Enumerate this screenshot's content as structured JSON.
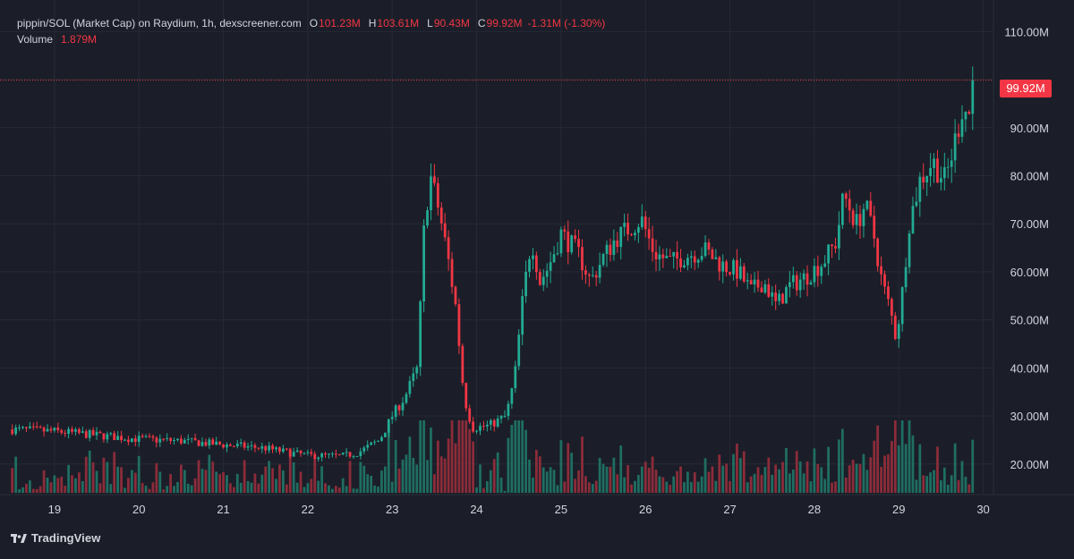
{
  "header": {
    "title": "pippin/SOL (Market Cap) on Raydium, 1h, dexscreener.com",
    "open_label": "O",
    "open_value": "101.23M",
    "high_label": "H",
    "high_value": "103.61M",
    "low_label": "L",
    "low_value": "90.43M",
    "close_label": "C",
    "close_value": "99.92M",
    "change": "-1.31M (-1.30%)",
    "volume_label": "Volume",
    "volume_value": "1.879M"
  },
  "last_price_label": "99.92M",
  "brand": "TradingView",
  "colors": {
    "background": "#1b1e28",
    "grid": "#262a36",
    "up": "#22ab94",
    "down": "#f23645",
    "volume_up": "#1f6e62",
    "volume_down": "#8c2c3a",
    "text": "#d1d4dc"
  },
  "chart_data": {
    "type": "candlestick",
    "x_unit": "day",
    "x_tick_labels": [
      "19",
      "20",
      "21",
      "22",
      "23",
      "24",
      "25",
      "26",
      "27",
      "28",
      "29",
      "30"
    ],
    "x_tick_values": [
      19,
      20,
      21,
      22,
      23,
      24,
      25,
      26,
      27,
      28,
      29,
      30
    ],
    "y_tick_labels": [
      "20.00M",
      "30.00M",
      "40.00M",
      "50.00M",
      "60.00M",
      "70.00M",
      "80.00M",
      "90.00M",
      "110.00M"
    ],
    "y_tick_values": [
      20,
      30,
      40,
      50,
      60,
      70,
      80,
      90,
      110
    ],
    "ylim": [
      14,
      111
    ],
    "xlim": [
      18.45,
      30.1
    ],
    "last_price": 99.92,
    "grid": true,
    "close_path": [
      [
        18.5,
        27.2
      ],
      [
        19.0,
        26.8
      ],
      [
        19.5,
        26.0
      ],
      [
        20.0,
        25.2
      ],
      [
        20.5,
        24.8
      ],
      [
        21.0,
        24.0
      ],
      [
        21.5,
        23.3
      ],
      [
        21.7,
        22.6
      ],
      [
        22.0,
        21.8
      ],
      [
        22.4,
        21.6
      ],
      [
        22.6,
        22.4
      ],
      [
        22.85,
        25.0
      ],
      [
        23.0,
        30.0
      ],
      [
        23.15,
        34.0
      ],
      [
        23.3,
        40.0
      ],
      [
        23.38,
        70.0
      ],
      [
        23.45,
        80.0
      ],
      [
        23.55,
        73.0
      ],
      [
        23.65,
        64.0
      ],
      [
        23.75,
        53.0
      ],
      [
        23.85,
        34.0
      ],
      [
        23.95,
        27.5
      ],
      [
        24.15,
        28.0
      ],
      [
        24.35,
        30.0
      ],
      [
        24.45,
        38.0
      ],
      [
        24.55,
        55.0
      ],
      [
        24.65,
        67.0
      ],
      [
        24.75,
        58.0
      ],
      [
        24.85,
        61.0
      ],
      [
        25.0,
        68.0
      ],
      [
        25.2,
        64.0
      ],
      [
        25.35,
        58.0
      ],
      [
        25.5,
        63.0
      ],
      [
        25.65,
        67.0
      ],
      [
        25.8,
        69.0
      ],
      [
        25.95,
        71.0
      ],
      [
        26.1,
        64.0
      ],
      [
        26.3,
        62.0
      ],
      [
        26.5,
        63.5
      ],
      [
        26.7,
        64.5
      ],
      [
        26.9,
        61.5
      ],
      [
        27.1,
        60.0
      ],
      [
        27.25,
        56.0
      ],
      [
        27.4,
        58.0
      ],
      [
        27.55,
        53.0
      ],
      [
        27.7,
        57.0
      ],
      [
        27.9,
        59.0
      ],
      [
        28.1,
        62.0
      ],
      [
        28.25,
        66.0
      ],
      [
        28.35,
        76.0
      ],
      [
        28.5,
        70.0
      ],
      [
        28.6,
        74.0
      ],
      [
        28.7,
        68.0
      ],
      [
        28.8,
        58.0
      ],
      [
        28.9,
        52.0
      ],
      [
        28.97,
        46.0
      ],
      [
        29.05,
        57.0
      ],
      [
        29.12,
        70.0
      ],
      [
        29.25,
        79.0
      ],
      [
        29.4,
        83.0
      ],
      [
        29.55,
        79.0
      ],
      [
        29.65,
        86.0
      ],
      [
        29.75,
        94.0
      ],
      [
        29.85,
        93.0
      ],
      [
        29.9,
        99.92
      ]
    ]
  }
}
